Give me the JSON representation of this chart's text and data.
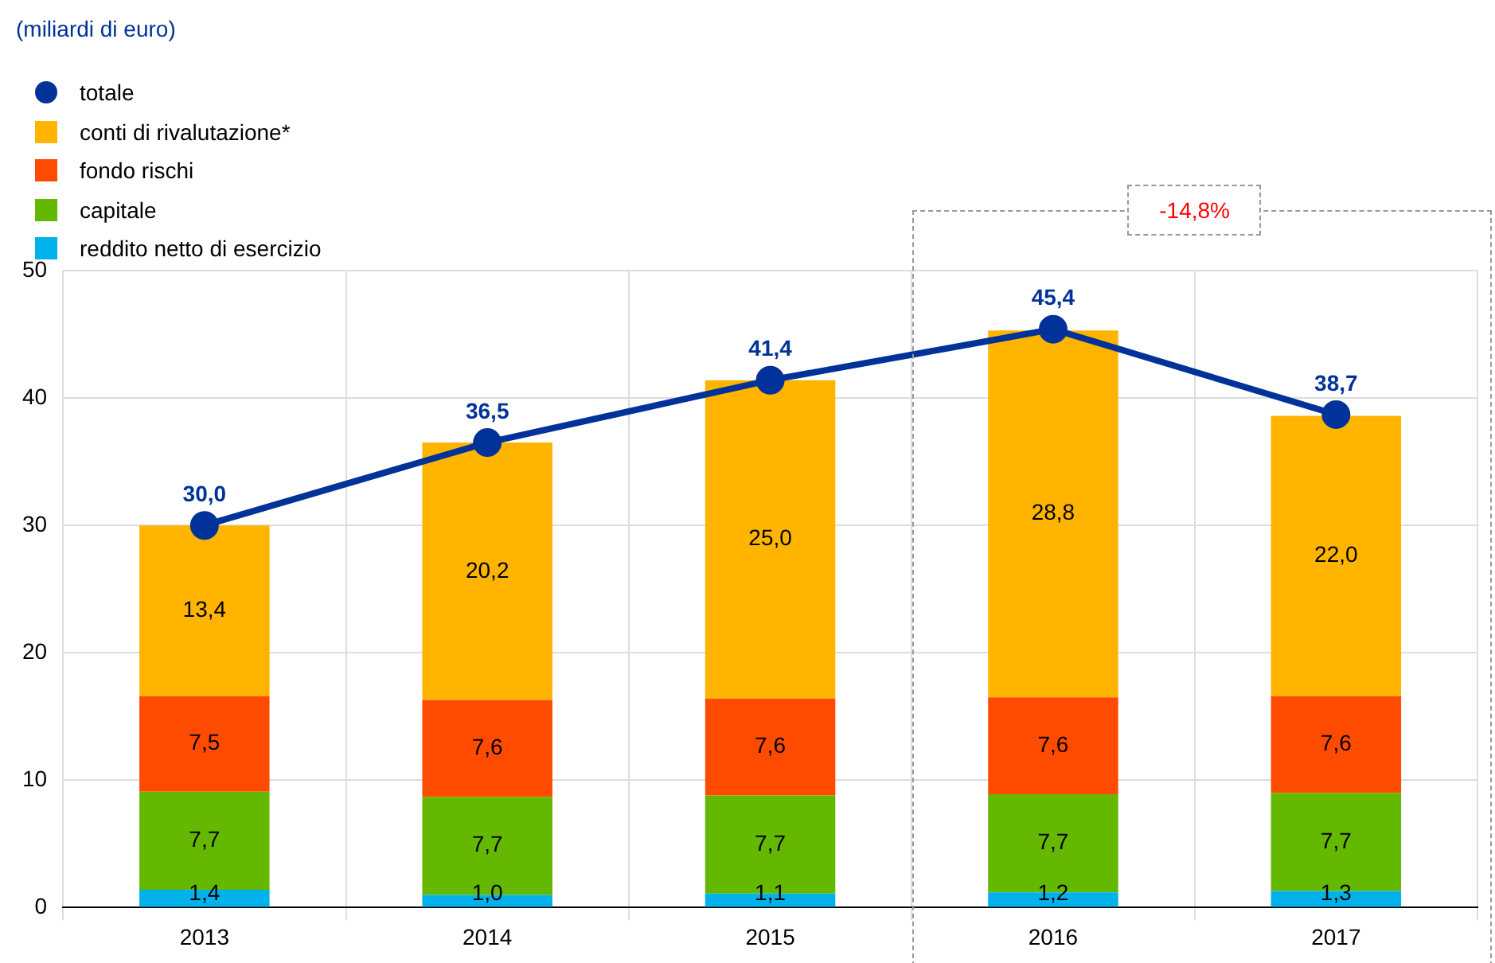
{
  "chart_data": {
    "type": "bar",
    "subtitle": "(miliardi di euro)",
    "categories": [
      "2013",
      "2014",
      "2015",
      "2016",
      "2017"
    ],
    "stacked": true,
    "ylim": [
      0,
      50
    ],
    "yticks": [
      0,
      10,
      20,
      30,
      40,
      50
    ],
    "grid": true,
    "legend": "top left",
    "annotations": [
      "-14,8%"
    ],
    "series": [
      {
        "name": "reddito netto di esercizio",
        "color": "#00b1ea",
        "values": [
          1.4,
          1.0,
          1.1,
          1.2,
          1.3
        ],
        "value_labels": [
          "1,4",
          "1,0",
          "1,1",
          "1,2",
          "1,3"
        ]
      },
      {
        "name": "capitale",
        "color": "#65b800",
        "values": [
          7.7,
          7.7,
          7.7,
          7.7,
          7.7
        ],
        "value_labels": [
          "7,7",
          "7,7",
          "7,7",
          "7,7",
          "7,7"
        ]
      },
      {
        "name": "fondo rischi",
        "color": "#ff4b00",
        "values": [
          7.5,
          7.6,
          7.6,
          7.6,
          7.6
        ],
        "value_labels": [
          "7,5",
          "7,6",
          "7,6",
          "7,6",
          "7,6"
        ]
      },
      {
        "name": "conti di rivalutazione*",
        "color": "#ffb400",
        "values": [
          13.4,
          20.2,
          25.0,
          28.8,
          22.0
        ],
        "value_labels": [
          "13,4",
          "20,2",
          "25,0",
          "28,8",
          "22,0"
        ]
      },
      {
        "name": "totale",
        "type": "line",
        "color": "#003299",
        "marker": "circle",
        "values": [
          30.0,
          36.5,
          41.4,
          45.4,
          38.7
        ],
        "value_labels": [
          "30,0",
          "36,5",
          "41,4",
          "45,4",
          "38,7"
        ]
      }
    ]
  }
}
